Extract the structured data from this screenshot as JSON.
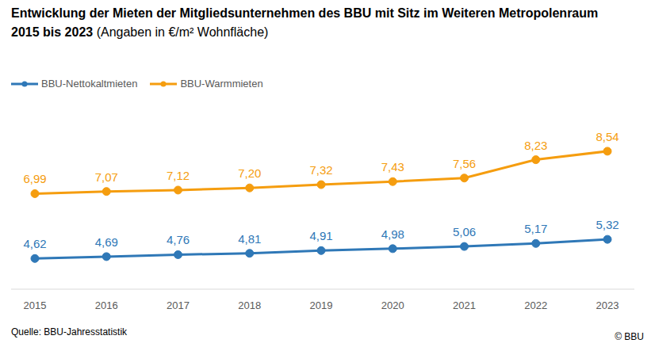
{
  "chart_data": {
    "type": "line",
    "title": "Entwicklung der Mieten der Mitgliedsunternehmen des BBU mit Sitz im Weiteren Metropolenraum",
    "subtitle": "2015 bis 2023 (Angaben in €/m² Wohnfläche)",
    "source": "Quelle: BBU-Jahresstatistik",
    "copyright": "© BBU",
    "categories": [
      "2015",
      "2016",
      "2017",
      "2018",
      "2019",
      "2020",
      "2021",
      "2022",
      "2023"
    ],
    "series": [
      {
        "name": "BBU-Nettokaltmieten",
        "color": "#2f78b7",
        "marker": "circle",
        "values": [
          4.62,
          4.69,
          4.76,
          4.81,
          4.91,
          4.98,
          5.06,
          5.17,
          5.32
        ],
        "value_labels": [
          "4,62",
          "4,69",
          "4,76",
          "4,81",
          "4,91",
          "4,98",
          "5,06",
          "5,17",
          "5,32"
        ]
      },
      {
        "name": "BBU-Warmmieten",
        "color": "#f59d0f",
        "marker": "circle",
        "values": [
          6.99,
          7.07,
          7.12,
          7.2,
          7.32,
          7.43,
          7.56,
          8.23,
          8.54
        ],
        "value_labels": [
          "6,99",
          "7,07",
          "7,12",
          "7,20",
          "7,32",
          "7,43",
          "7,56",
          "8,23",
          "8,54"
        ]
      }
    ],
    "ylim": [
      3.5,
      9
    ],
    "grid": false,
    "legend": "top-left",
    "data_labels": true,
    "tick_labels": "x"
  }
}
